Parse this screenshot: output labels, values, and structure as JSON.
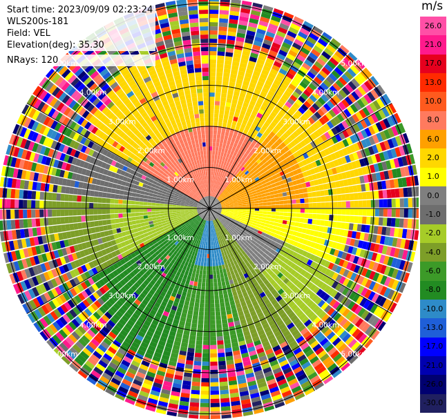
{
  "header": {
    "start_time": "Start time: 2023/09/09 02:23:24",
    "instrument": "WLS200s-181",
    "field": "Field: VEL",
    "elevation": "Elevation(deg): 35.30",
    "nrays": "NRays: 120"
  },
  "colorbar": {
    "unit": "m/s",
    "ticks": [
      "26.0",
      "21.0",
      "17.0",
      "13.0",
      "10.0",
      "8.0",
      "6.0",
      "2.0",
      "1.0",
      "0.0",
      "-1.0",
      "-2.0",
      "-4.0",
      "-6.0",
      "-8.0",
      "-10.0",
      "-13.0",
      "-17.0",
      "-21.0",
      "-26.0",
      "-30.0"
    ],
    "colors": [
      "#ff4fa6",
      "#ff1a8c",
      "#e6001e",
      "#ff2a00",
      "#ff5a1e",
      "#ff7a5e",
      "#ffa000",
      "#ffd700",
      "#ffff00",
      "#7f7f7f",
      "#6e6e6e",
      "#a6cc28",
      "#7d9e28",
      "#3c9a28",
      "#228b22",
      "#2e8bc8",
      "#1f5fd8",
      "#0000ff",
      "#0000b0",
      "#000070",
      "#202060"
    ]
  },
  "range_labels": [
    "1.00km",
    "2.00km",
    "3.00km",
    "4.00km",
    "5.00km"
  ],
  "icons": {
    "overlay": "ppi-scan-image"
  }
}
